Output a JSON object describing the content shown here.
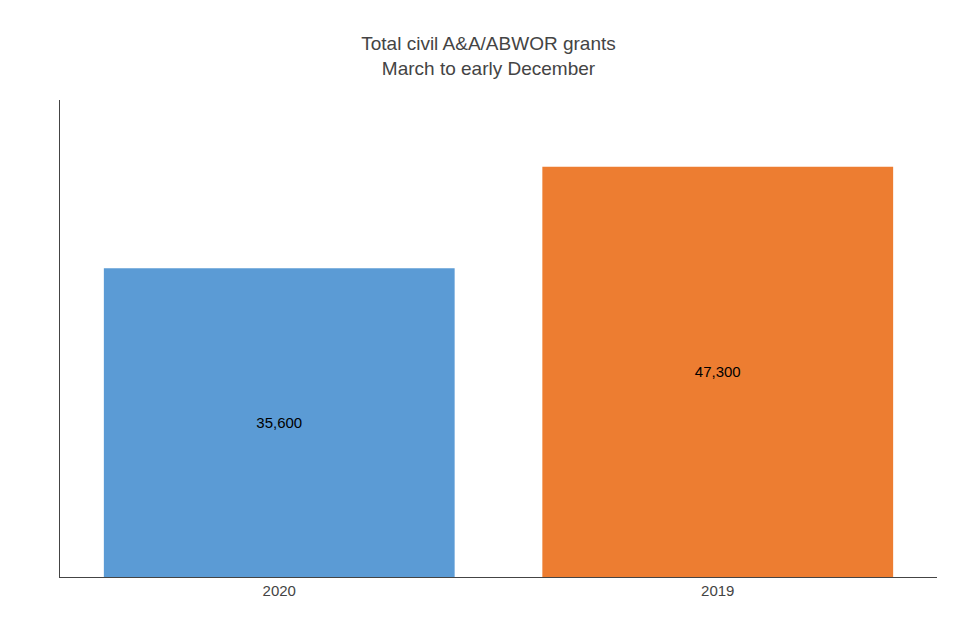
{
  "chart_data": {
    "type": "bar",
    "title": "Total civil A&A/ABWOR grants",
    "subtitle": "March to early December",
    "categories": [
      "2020",
      "2019"
    ],
    "values": [
      35600,
      47300
    ],
    "value_labels": [
      "35,600",
      "47,300"
    ],
    "colors": [
      "#5B9BD5",
      "#ED7D31"
    ],
    "ylim": [
      0,
      55000
    ],
    "grid": false,
    "data_labels": true,
    "tick_labels": "x"
  }
}
